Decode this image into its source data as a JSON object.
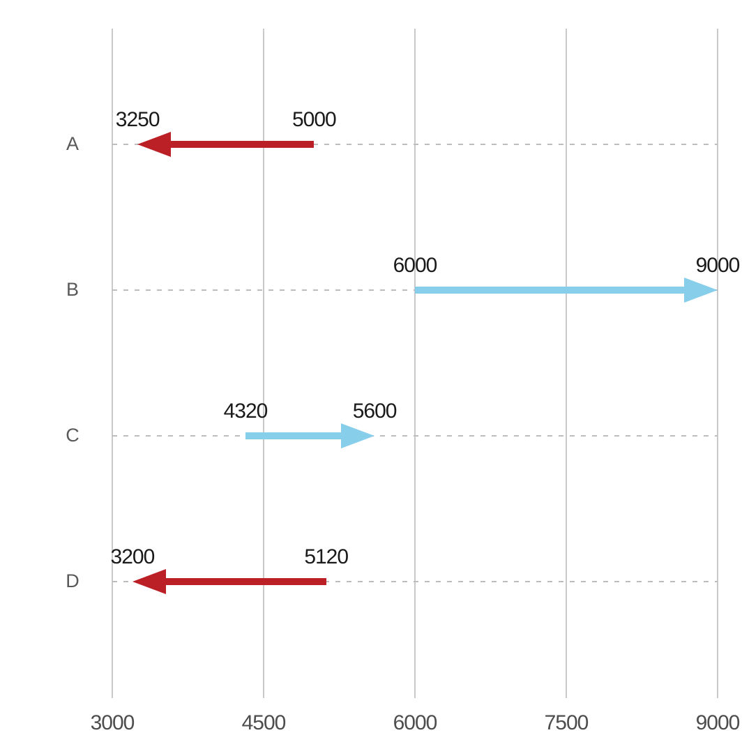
{
  "chart_data": {
    "type": "arrow",
    "title": "",
    "xlabel": "",
    "ylabel": "",
    "grid": "vertical-solid-plus-horizontal-dashed-row-guides",
    "legend": "none",
    "categories": [
      "A",
      "B",
      "C",
      "D"
    ],
    "series": [
      {
        "category": "A",
        "start": 5000,
        "end": 3250,
        "start_label": "5000",
        "end_label": "3250",
        "direction": "decrease",
        "color": "#bb2026"
      },
      {
        "category": "B",
        "start": 6000,
        "end": 9000,
        "start_label": "6000",
        "end_label": "9000",
        "direction": "increase",
        "color": "#87ceeb"
      },
      {
        "category": "C",
        "start": 4320,
        "end": 5600,
        "start_label": "4320",
        "end_label": "5600",
        "direction": "increase",
        "color": "#87ceeb"
      },
      {
        "category": "D",
        "start": 5120,
        "end": 3200,
        "start_label": "5120",
        "end_label": "3200",
        "direction": "decrease",
        "color": "#bb2026"
      }
    ],
    "x_axis": {
      "min": 3000,
      "max": 9000,
      "ticks": [
        3000,
        4500,
        6000,
        7500,
        9000
      ],
      "tick_labels": [
        "3000",
        "4500",
        "6000",
        "7500",
        "9000"
      ]
    },
    "colors": {
      "decrease_arrow": "#bb2026",
      "increase_arrow": "#87ceeb",
      "gridline": "#c9c9c9",
      "row_guide": "#bdbdbd",
      "tick_label": "#4d4d4d",
      "category_label": "#595959",
      "value_label": "#1a1a1a",
      "background": "#ffffff"
    }
  }
}
